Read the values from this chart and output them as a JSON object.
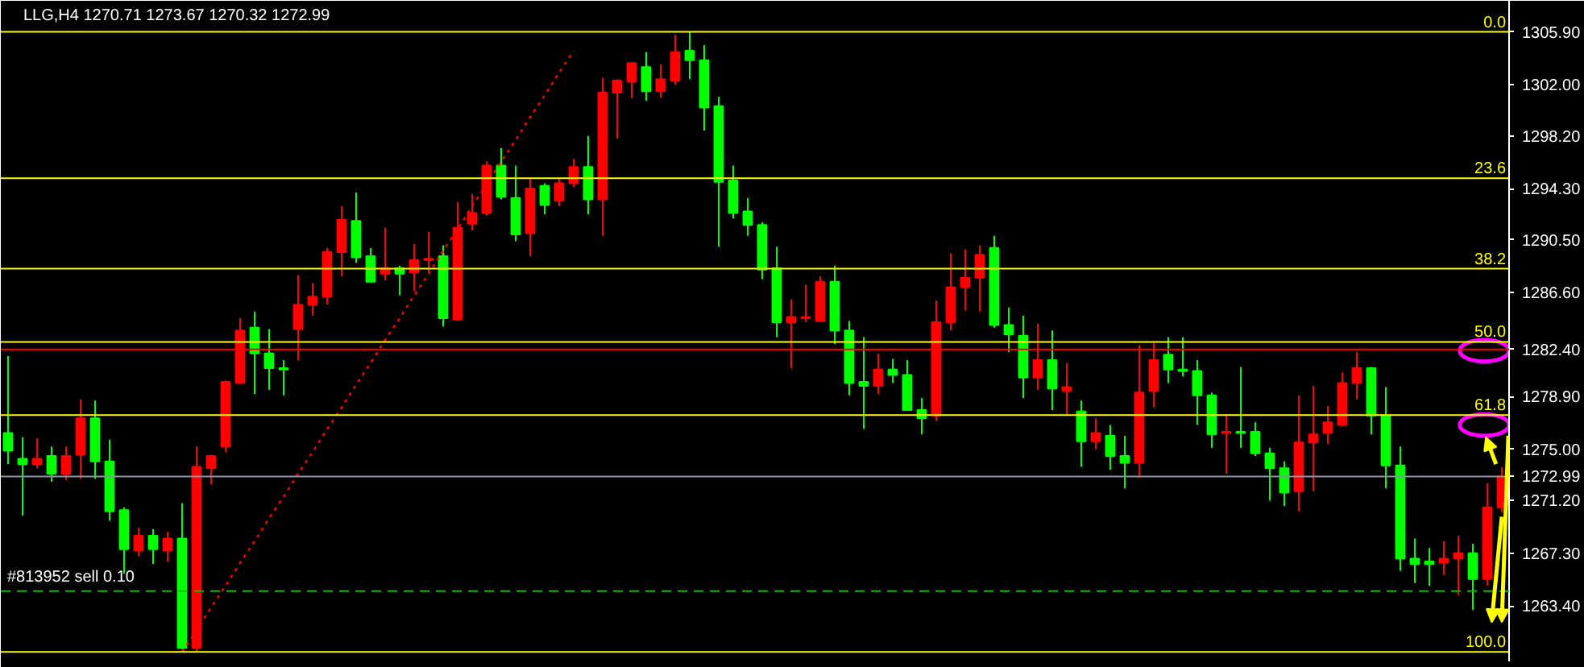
{
  "chart_data": {
    "type": "candlestick",
    "title": "LLG,H4  1270.71 1273.67 1270.32 1272.99",
    "categories": [
      null,
      null,
      null,
      null,
      null,
      null,
      null,
      null,
      null,
      null,
      null,
      null,
      null,
      null,
      null,
      null,
      null,
      null,
      null,
      null,
      null,
      null,
      null,
      null,
      null,
      null,
      null,
      null,
      null,
      null,
      null,
      null,
      null,
      null,
      null,
      null,
      null,
      null,
      null,
      null,
      null,
      null,
      null,
      null,
      null,
      null,
      null,
      null,
      null,
      null,
      null,
      null,
      null,
      null,
      null,
      null,
      null,
      null,
      null,
      null,
      null,
      null,
      null,
      null,
      null,
      null,
      null,
      null,
      null,
      null,
      null,
      null,
      null,
      null,
      null,
      null,
      null,
      null,
      null,
      null,
      null,
      null,
      null,
      null,
      null,
      null,
      null,
      null,
      null,
      null,
      null,
      null,
      null,
      null,
      null,
      null,
      null,
      null,
      null,
      null,
      null,
      null,
      null,
      null
    ],
    "ohlc": [
      [
        1276.2,
        1281.9,
        1273.9,
        1274.9
      ],
      [
        1274.3,
        1275.9,
        1270.1,
        1273.9
      ],
      [
        1273.9,
        1275.8,
        1273.6,
        1274.3
      ],
      [
        1274.5,
        1275.2,
        1272.6,
        1273.2
      ],
      [
        1273.2,
        1275.2,
        1272.7,
        1274.5
      ],
      [
        1274.6,
        1278.7,
        1272.8,
        1277.3
      ],
      [
        1277.3,
        1278.6,
        1272.8,
        1274.1
      ],
      [
        1274.1,
        1275.7,
        1269.7,
        1270.4
      ],
      [
        1270.5,
        1270.7,
        1265.8,
        1267.6
      ],
      [
        1267.5,
        1269.2,
        1267.1,
        1268.6
      ],
      [
        1268.6,
        1269.1,
        1266.5,
        1267.6
      ],
      [
        1267.5,
        1268.9,
        1266.7,
        1268.4
      ],
      [
        1268.4,
        1271.0,
        1260.2,
        1260.3
      ],
      [
        1260.3,
        1275.2,
        1260.0,
        1273.7
      ],
      [
        1273.6,
        1274.6,
        1272.4,
        1274.5
      ],
      [
        1275.2,
        1280.1,
        1274.8,
        1280.0
      ],
      [
        1279.9,
        1284.7,
        1279.9,
        1283.8
      ],
      [
        1284.0,
        1285.2,
        1279.1,
        1282.1
      ],
      [
        1282.1,
        1283.9,
        1279.4,
        1281.0
      ],
      [
        1281.0,
        1281.6,
        1279.0,
        1280.9
      ],
      [
        1283.9,
        1287.9,
        1281.6,
        1285.7
      ],
      [
        1285.7,
        1287.3,
        1284.9,
        1286.3
      ],
      [
        1286.3,
        1289.9,
        1285.7,
        1289.6
      ],
      [
        1289.6,
        1293.0,
        1287.8,
        1292.0
      ],
      [
        1291.9,
        1294.0,
        1288.8,
        1289.2
      ],
      [
        1289.3,
        1289.9,
        1287.4,
        1287.4
      ],
      [
        1288.0,
        1291.4,
        1287.5,
        1288.4
      ],
      [
        1288.4,
        1288.6,
        1286.4,
        1288.0
      ],
      [
        1288.1,
        1290.2,
        1286.7,
        1289.0
      ],
      [
        1289.0,
        1291.1,
        1288.1,
        1289.1
      ],
      [
        1289.3,
        1290.1,
        1284.1,
        1284.7
      ],
      [
        1284.6,
        1293.3,
        1284.5,
        1291.4
      ],
      [
        1291.7,
        1293.9,
        1291.2,
        1292.5
      ],
      [
        1292.5,
        1296.3,
        1292.3,
        1296.0
      ],
      [
        1296.0,
        1297.3,
        1293.5,
        1293.7
      ],
      [
        1293.6,
        1296.0,
        1290.4,
        1290.9
      ],
      [
        1291.0,
        1295.0,
        1289.3,
        1294.3
      ],
      [
        1294.5,
        1294.7,
        1292.4,
        1293.1
      ],
      [
        1293.4,
        1295.1,
        1293.0,
        1294.7
      ],
      [
        1294.7,
        1296.5,
        1294.4,
        1295.9
      ],
      [
        1295.9,
        1298.2,
        1292.4,
        1293.5
      ],
      [
        1293.5,
        1302.5,
        1290.8,
        1301.4
      ],
      [
        1301.4,
        1302.4,
        1298.0,
        1302.3
      ],
      [
        1302.2,
        1303.6,
        1301.0,
        1303.6
      ],
      [
        1303.3,
        1304.4,
        1300.8,
        1301.5
      ],
      [
        1301.5,
        1303.5,
        1301.0,
        1302.4
      ],
      [
        1302.3,
        1305.7,
        1302.0,
        1304.4
      ],
      [
        1304.5,
        1305.9,
        1302.4,
        1303.8
      ],
      [
        1303.8,
        1304.9,
        1298.6,
        1300.3
      ],
      [
        1300.4,
        1301.1,
        1290.0,
        1294.8
      ],
      [
        1294.9,
        1296.0,
        1292.1,
        1292.5
      ],
      [
        1292.6,
        1293.6,
        1290.8,
        1291.6
      ],
      [
        1291.6,
        1291.8,
        1287.6,
        1288.3
      ],
      [
        1288.4,
        1290.0,
        1283.3,
        1284.4
      ],
      [
        1284.4,
        1286.1,
        1281.0,
        1284.8
      ],
      [
        1284.7,
        1287.2,
        1284.4,
        1284.8
      ],
      [
        1284.5,
        1287.8,
        1284.5,
        1287.4
      ],
      [
        1287.4,
        1288.6,
        1282.8,
        1283.8
      ],
      [
        1283.8,
        1284.5,
        1279.0,
        1279.9
      ],
      [
        1280.0,
        1283.3,
        1276.5,
        1279.7
      ],
      [
        1279.7,
        1282.1,
        1279.1,
        1280.9
      ],
      [
        1280.9,
        1281.7,
        1279.9,
        1280.5
      ],
      [
        1280.5,
        1281.6,
        1277.9,
        1277.9
      ],
      [
        1277.9,
        1278.8,
        1276.1,
        1277.3
      ],
      [
        1277.5,
        1286.0,
        1277.1,
        1284.4
      ],
      [
        1284.4,
        1289.5,
        1283.8,
        1287.0
      ],
      [
        1287.0,
        1289.8,
        1285.3,
        1287.7
      ],
      [
        1287.7,
        1290.1,
        1285.2,
        1289.4
      ],
      [
        1289.9,
        1290.8,
        1284.0,
        1284.2
      ],
      [
        1284.2,
        1285.5,
        1282.2,
        1283.5
      ],
      [
        1283.4,
        1284.9,
        1278.8,
        1280.3
      ],
      [
        1280.3,
        1284.3,
        1279.4,
        1281.6
      ],
      [
        1281.6,
        1283.8,
        1277.9,
        1279.5
      ],
      [
        1279.3,
        1281.4,
        1277.6,
        1279.6
      ],
      [
        1277.8,
        1278.6,
        1273.7,
        1275.6
      ],
      [
        1275.6,
        1277.3,
        1275.0,
        1276.2
      ],
      [
        1276.0,
        1276.8,
        1273.5,
        1274.5
      ],
      [
        1274.5,
        1276.0,
        1272.1,
        1274.0
      ],
      [
        1274.0,
        1282.7,
        1272.9,
        1279.2
      ],
      [
        1279.3,
        1283.0,
        1278.1,
        1281.6
      ],
      [
        1282.0,
        1283.3,
        1279.9,
        1280.9
      ],
      [
        1280.9,
        1283.3,
        1280.4,
        1280.8
      ],
      [
        1280.8,
        1281.6,
        1276.8,
        1279.0
      ],
      [
        1279.0,
        1279.2,
        1275.1,
        1276.1
      ],
      [
        1276.2,
        1277.6,
        1273.2,
        1276.3
      ],
      [
        1276.3,
        1281.1,
        1275.1,
        1276.2
      ],
      [
        1276.3,
        1277.0,
        1274.5,
        1274.7
      ],
      [
        1274.7,
        1275.1,
        1271.2,
        1273.6
      ],
      [
        1273.6,
        1274.1,
        1270.8,
        1271.8
      ],
      [
        1271.9,
        1279.0,
        1270.4,
        1275.5
      ],
      [
        1275.5,
        1279.7,
        1271.9,
        1276.1
      ],
      [
        1276.2,
        1278.2,
        1275.4,
        1277.0
      ],
      [
        1276.8,
        1280.7,
        1276.7,
        1279.9
      ],
      [
        1279.9,
        1282.2,
        1278.7,
        1281.0
      ],
      [
        1281.0,
        1281.1,
        1276.1,
        1277.5
      ],
      [
        1277.5,
        1279.6,
        1272.1,
        1273.8
      ],
      [
        1273.8,
        1275.2,
        1266.0,
        1266.9
      ],
      [
        1266.9,
        1268.4,
        1265.1,
        1266.5
      ],
      [
        1266.7,
        1267.7,
        1264.9,
        1266.5
      ],
      [
        1266.6,
        1268.2,
        1265.7,
        1266.9
      ],
      [
        1266.9,
        1268.6,
        1264.2,
        1267.3
      ],
      [
        1267.3,
        1268.0,
        1263.1,
        1265.4
      ],
      [
        1265.4,
        1272.5,
        1264.9,
        1270.7
      ],
      [
        1270.71,
        1273.67,
        1270.32,
        1272.99
      ]
    ],
    "colors": [
      "#00ff00",
      "#00ff00",
      "#ff0000",
      "#00ff00",
      "#ff0000",
      "#ff0000",
      "#00ff00",
      "#00ff00",
      "#00ff00",
      "#ff0000",
      "#00ff00",
      "#ff0000",
      "#00ff00",
      "#ff0000",
      "#ff0000",
      "#ff0000",
      "#ff0000",
      "#00ff00",
      "#00ff00",
      "#00ff00",
      "#ff0000",
      "#ff0000",
      "#ff0000",
      "#ff0000",
      "#00ff00",
      "#00ff00",
      "#ff0000",
      "#00ff00",
      "#ff0000",
      "#ff0000",
      "#00ff00",
      "#ff0000",
      "#ff0000",
      "#ff0000",
      "#00ff00",
      "#00ff00",
      "#ff0000",
      "#00ff00",
      "#ff0000",
      "#ff0000",
      "#00ff00",
      "#ff0000",
      "#ff0000",
      "#ff0000",
      "#00ff00",
      "#ff0000",
      "#ff0000",
      "#00ff00",
      "#00ff00",
      "#00ff00",
      "#00ff00",
      "#00ff00",
      "#00ff00",
      "#00ff00",
      "#ff0000",
      "#ff0000",
      "#ff0000",
      "#00ff00",
      "#00ff00",
      "#00ff00",
      "#ff0000",
      "#00ff00",
      "#00ff00",
      "#00ff00",
      "#ff0000",
      "#ff0000",
      "#ff0000",
      "#ff0000",
      "#00ff00",
      "#00ff00",
      "#00ff00",
      "#ff0000",
      "#00ff00",
      "#ff0000",
      "#00ff00",
      "#ff0000",
      "#00ff00",
      "#00ff00",
      "#ff0000",
      "#ff0000",
      "#00ff00",
      "#00ff00",
      "#00ff00",
      "#00ff00",
      "#ff0000",
      "#00ff00",
      "#00ff00",
      "#00ff00",
      "#00ff00",
      "#ff0000",
      "#ff0000",
      "#ff0000",
      "#ff0000",
      "#ff0000",
      "#00ff00",
      "#00ff00",
      "#00ff00",
      "#00ff00",
      "#00ff00",
      "#ff0000",
      "#ff0000",
      "#00ff00",
      "#ff0000",
      "#ff0000"
    ],
    "ylim": [
      1259.3,
      1308.2
    ],
    "yticks": [
      {
        "value": 1305.9,
        "label": "1305.90"
      },
      {
        "value": 1302.0,
        "label": "1302.00"
      },
      {
        "value": 1298.2,
        "label": "1298.20"
      },
      {
        "value": 1294.3,
        "label": "1294.30"
      },
      {
        "value": 1290.5,
        "label": "1290.50"
      },
      {
        "value": 1286.6,
        "label": "1286.60"
      },
      {
        "value": 1278.9,
        "label": "1278.90"
      },
      {
        "value": 1275.0,
        "label": "1275.00"
      },
      {
        "value": 1271.2,
        "label": "1271.20"
      },
      {
        "value": 1267.3,
        "label": "1267.30"
      },
      {
        "value": 1263.4,
        "label": "1263.40"
      }
    ],
    "tick_labels": "y",
    "annotations": [
      {
        "text": "0.0",
        "y": 1305.9
      },
      {
        "text": "23.6",
        "y": 1295.07
      },
      {
        "text": "38.2",
        "y": 1288.37
      },
      {
        "text": "50.0",
        "y": 1282.95
      },
      {
        "text": "61.8",
        "y": 1277.53
      },
      {
        "text": "100.0",
        "y": 1260.0
      }
    ],
    "ref_lines": [
      {
        "axis": "y",
        "value": 1305.9,
        "color": "#ffff00",
        "line_style": "solid"
      },
      {
        "axis": "y",
        "value": 1295.07,
        "color": "#ffff00",
        "line_style": "solid"
      },
      {
        "axis": "y",
        "value": 1288.37,
        "color": "#ffff00",
        "line_style": "solid"
      },
      {
        "axis": "y",
        "value": 1282.95,
        "color": "#ffff00",
        "line_style": "solid"
      },
      {
        "axis": "y",
        "value": 1277.53,
        "color": "#ffff00",
        "line_style": "solid"
      },
      {
        "axis": "y",
        "value": 1260.0,
        "color": "#ffff00",
        "line_style": "solid"
      },
      {
        "axis": "y",
        "value": 1282.4,
        "label": "1282.40",
        "color": "#ff0000",
        "line_style": "solid"
      },
      {
        "axis": "y",
        "value": 1272.99,
        "label": "1272.99",
        "color": "#8a94a6",
        "line_style": "solid"
      },
      {
        "axis": "y",
        "value": 1264.5,
        "label": "#813952 sell 0.10",
        "color": "#00c000",
        "line_style": "dashed"
      }
    ],
    "series": [
      {
        "type": "line",
        "color": "#ff0000",
        "line_style": "dotted",
        "values": [
          null,
          null,
          null,
          null,
          null,
          null,
          null,
          null,
          null,
          null,
          null,
          null,
          1260.0,
          1261.6,
          1263.3,
          1264.9,
          1266.6,
          1268.2,
          1269.9,
          1271.5,
          1273.2,
          1274.8,
          1276.5,
          1278.1,
          1279.8,
          1281.4,
          1283.1,
          1284.7,
          1286.4,
          1288.0,
          1289.7,
          1291.3,
          1293.0,
          1294.6,
          1296.3,
          1297.9,
          1299.6,
          1301.2,
          1302.9,
          1304.5,
          null,
          null,
          null,
          null,
          null,
          null,
          null,
          null,
          null,
          null,
          null,
          null,
          null,
          null,
          null,
          null,
          null,
          null,
          null,
          null,
          null,
          null,
          null,
          null,
          null,
          null,
          null,
          null,
          null,
          null,
          null,
          null,
          null,
          null,
          null,
          null,
          null,
          null,
          null,
          null,
          null,
          null,
          null,
          null,
          null,
          null,
          null,
          null,
          null,
          null,
          null,
          null,
          null,
          null,
          null,
          null,
          null,
          null,
          null,
          null,
          null,
          null,
          null,
          null
        ]
      }
    ]
  }
}
